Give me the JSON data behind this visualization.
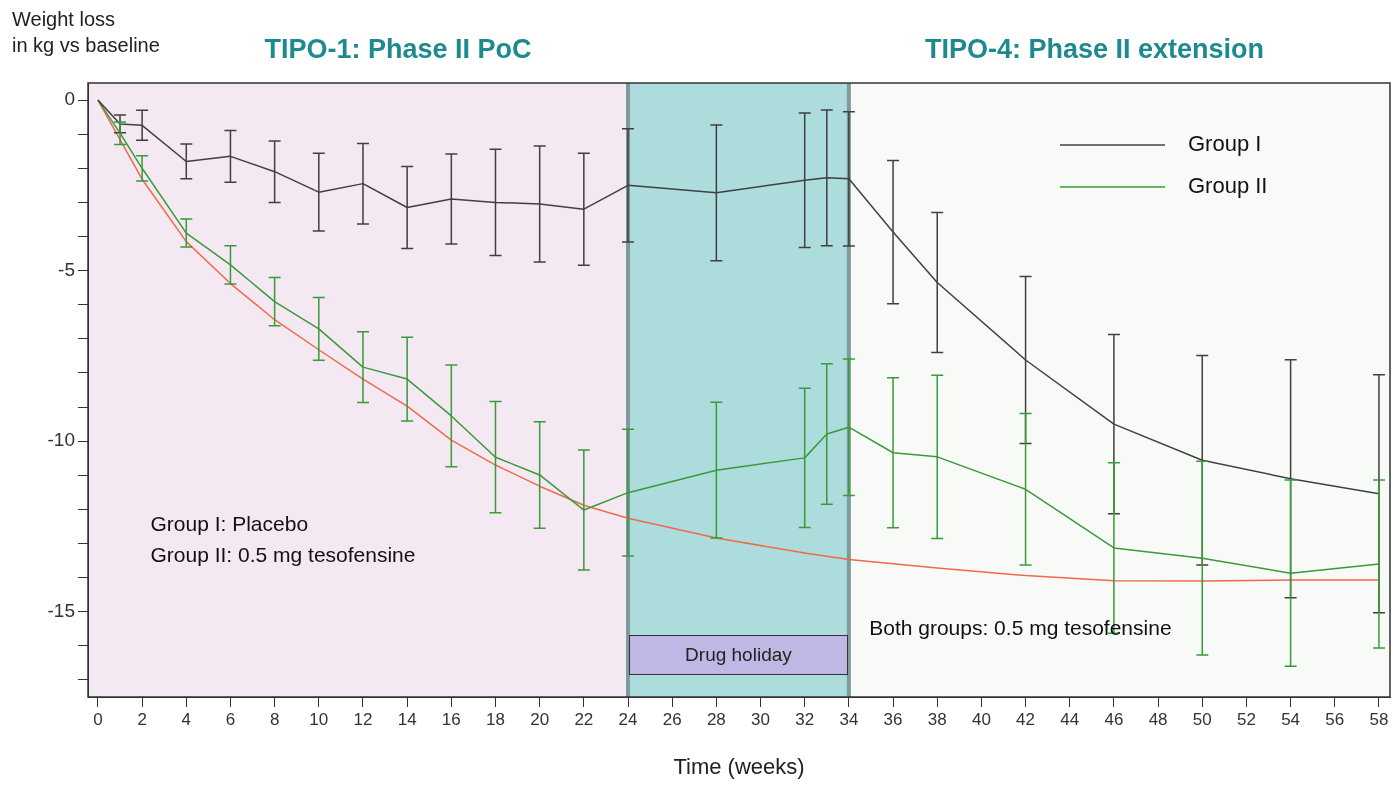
{
  "chart_data": {
    "type": "line",
    "ylabel": "Weight loss\nin kg vs baseline",
    "xlabel": "Time (weeks)",
    "xlim": [
      -0.45,
      58.5
    ],
    "xticks": [
      0,
      2,
      4,
      6,
      8,
      10,
      12,
      14,
      16,
      18,
      20,
      22,
      24,
      26,
      28,
      30,
      32,
      34,
      36,
      38,
      40,
      42,
      44,
      46,
      48,
      50,
      52,
      54,
      56,
      58
    ],
    "ylim": [
      -17.5,
      0.5
    ],
    "yticks": [
      0,
      {
        "value": -1,
        "label": null
      },
      {
        "value": -2,
        "label": null
      },
      {
        "value": -3,
        "label": null
      },
      {
        "value": -4,
        "label": null
      },
      -5,
      {
        "value": -6,
        "label": null
      },
      {
        "value": -7,
        "label": null
      },
      {
        "value": -8,
        "label": null
      },
      {
        "value": -9,
        "label": null
      },
      -10,
      {
        "value": -11,
        "label": null
      },
      {
        "value": -12,
        "label": null
      },
      {
        "value": -13,
        "label": null
      },
      {
        "value": -14,
        "label": null
      },
      -15,
      {
        "value": -16,
        "label": null
      },
      {
        "value": -17,
        "label": null
      }
    ],
    "series": [
      {
        "name": "Group I",
        "color": "#404040",
        "x": [
          0,
          1,
          2,
          4,
          6,
          8,
          10,
          12,
          14,
          16,
          18,
          20,
          22,
          24,
          28,
          32,
          33,
          34,
          36,
          38,
          42,
          46,
          50,
          54,
          58
        ],
        "values": [
          0,
          -0.7,
          -0.74,
          -1.8,
          -1.65,
          -2.1,
          -2.7,
          -2.45,
          -3.15,
          -2.9,
          -3.0,
          -3.05,
          -3.2,
          -2.5,
          -2.72,
          -2.35,
          -2.28,
          -2.31,
          -3.87,
          -5.35,
          -7.62,
          -9.5,
          -10.56,
          -11.1,
          -11.54
        ],
        "errors": [
          null,
          0.26,
          0.44,
          0.51,
          0.76,
          0.9,
          1.14,
          1.18,
          1.2,
          1.32,
          1.56,
          1.7,
          1.64,
          1.66,
          1.99,
          1.97,
          1.99,
          1.97,
          2.1,
          2.05,
          2.45,
          2.63,
          3.07,
          3.49,
          3.49
        ]
      },
      {
        "name": "Group II",
        "color": "#3a9a3a",
        "x": [
          0,
          1,
          2,
          4,
          6,
          8,
          10,
          12,
          14,
          16,
          18,
          20,
          22,
          24,
          28,
          32,
          33,
          34,
          36,
          38,
          42,
          46,
          50,
          54,
          58
        ],
        "values": [
          0,
          -0.97,
          -2.0,
          -3.9,
          -4.83,
          -5.91,
          -6.71,
          -7.83,
          -8.18,
          -9.26,
          -10.47,
          -10.99,
          -12.02,
          -11.51,
          -10.85,
          -10.49,
          -9.79,
          -9.59,
          -10.34,
          -10.46,
          -11.41,
          -13.13,
          -13.43,
          -13.87,
          -13.6
        ],
        "errors": [
          null,
          0.33,
          0.37,
          0.41,
          0.56,
          0.71,
          0.92,
          1.04,
          1.23,
          1.49,
          1.63,
          1.56,
          1.76,
          1.86,
          1.99,
          2.04,
          2.06,
          2.0,
          2.2,
          2.39,
          2.22,
          2.5,
          2.84,
          2.73,
          2.46
        ]
      },
      {
        "color": "#f06a4a",
        "x": [
          0,
          2,
          4,
          6,
          8,
          10,
          12,
          14,
          16,
          18,
          20,
          22,
          24,
          28,
          32,
          34,
          38,
          42,
          46,
          50,
          54,
          58
        ],
        "values": [
          0,
          -2.32,
          -4.15,
          -5.38,
          -6.44,
          -7.32,
          -8.18,
          -8.97,
          -9.97,
          -10.7,
          -11.32,
          -11.88,
          -12.26,
          -12.84,
          -13.28,
          -13.47,
          -13.72,
          -13.94,
          -14.09,
          -14.1,
          -14.07,
          -14.07
        ]
      }
    ],
    "bands": [
      {
        "axis": "x",
        "from": -0.45,
        "to": 24,
        "label": "TIPO-1: Phase II PoC",
        "color": "#f4e8f2"
      },
      {
        "axis": "x",
        "from": 24,
        "to": 34,
        "label": "Drug holiday",
        "color": "#acdcdc"
      },
      {
        "axis": "x",
        "from": 34,
        "to": 58.5,
        "label": "TIPO-4: Phase II extension",
        "color": "#f8faf8"
      }
    ],
    "ref_lines": [
      {
        "axis": "x",
        "value": 24,
        "color": "#7f9a9a"
      },
      {
        "axis": "x",
        "value": 34,
        "color": "#7f9a9a"
      }
    ],
    "annotations": [
      "Group I: Placebo",
      "Group II: 0.5 mg tesofensine",
      "Both groups: 0.5 mg tesofensine"
    ],
    "legend": "top right",
    "grid": false,
    "marker": "none",
    "line_style": "solid"
  }
}
